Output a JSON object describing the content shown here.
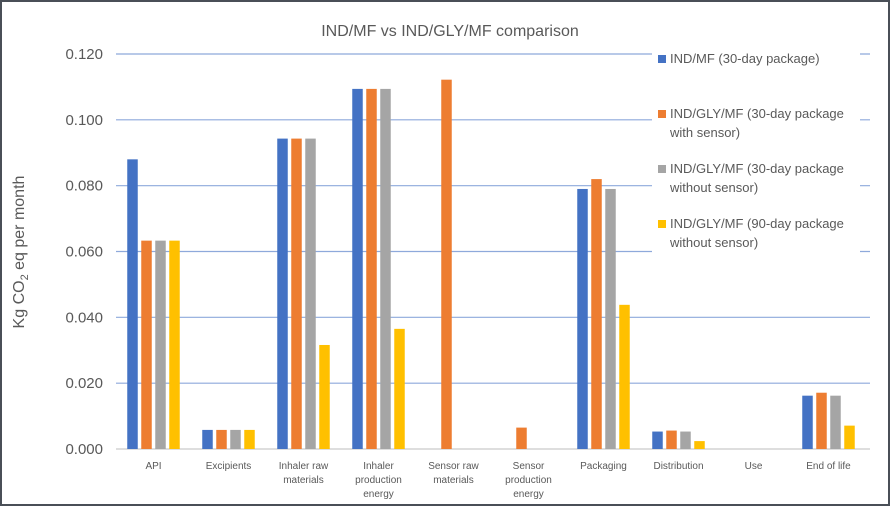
{
  "chart_data": {
    "type": "bar",
    "title": "IND/MF vs IND/GLY/MF comparison",
    "ylabel": {
      "pre": "Kg CO",
      "sub": "2",
      "post": " eq per month"
    },
    "xlabel": "",
    "ylim": [
      0,
      0.12
    ],
    "yticks": [
      "0.000",
      "0.020",
      "0.040",
      "0.060",
      "0.080",
      "0.100",
      "0.120"
    ],
    "grid": true,
    "legend_placement": "right",
    "categories": [
      [
        "API"
      ],
      [
        "Excipients"
      ],
      [
        "Inhaler raw",
        "materials"
      ],
      [
        "Inhaler",
        "production",
        "energy"
      ],
      [
        "Sensor raw",
        "materials"
      ],
      [
        "Sensor",
        "production",
        "energy"
      ],
      [
        "Packaging"
      ],
      [
        "Distribution"
      ],
      [
        "Use"
      ],
      [
        "End of life"
      ]
    ],
    "series": [
      {
        "name": [
          "IND/MF (30-day package)"
        ],
        "color": "#4472C4",
        "values": [
          0.088,
          0.0058,
          0.0943,
          0.1094,
          0,
          0,
          0.079,
          0.0053,
          0,
          0.0162
        ]
      },
      {
        "name": [
          "IND/GLY/MF (30-day package",
          "with sensor)"
        ],
        "color": "#ED7D31",
        "values": [
          0.0633,
          0.0058,
          0.0943,
          0.1094,
          0.1122,
          0.0065,
          0.082,
          0.0056,
          0,
          0.0171
        ]
      },
      {
        "name": [
          "IND/GLY/MF (30-day package",
          "without sensor)"
        ],
        "color": "#A5A5A5",
        "values": [
          0.0633,
          0.0058,
          0.0943,
          0.1094,
          0,
          0,
          0.079,
          0.0053,
          0,
          0.0162
        ]
      },
      {
        "name": [
          "IND/GLY/MF (90-day package",
          "without sensor)"
        ],
        "color": "#FFC000",
        "values": [
          0.0633,
          0.0058,
          0.0316,
          0.0365,
          0,
          0,
          0.0438,
          0.0024,
          0,
          0.0071
        ]
      }
    ],
    "gridline_color": "#8EA9DB"
  }
}
